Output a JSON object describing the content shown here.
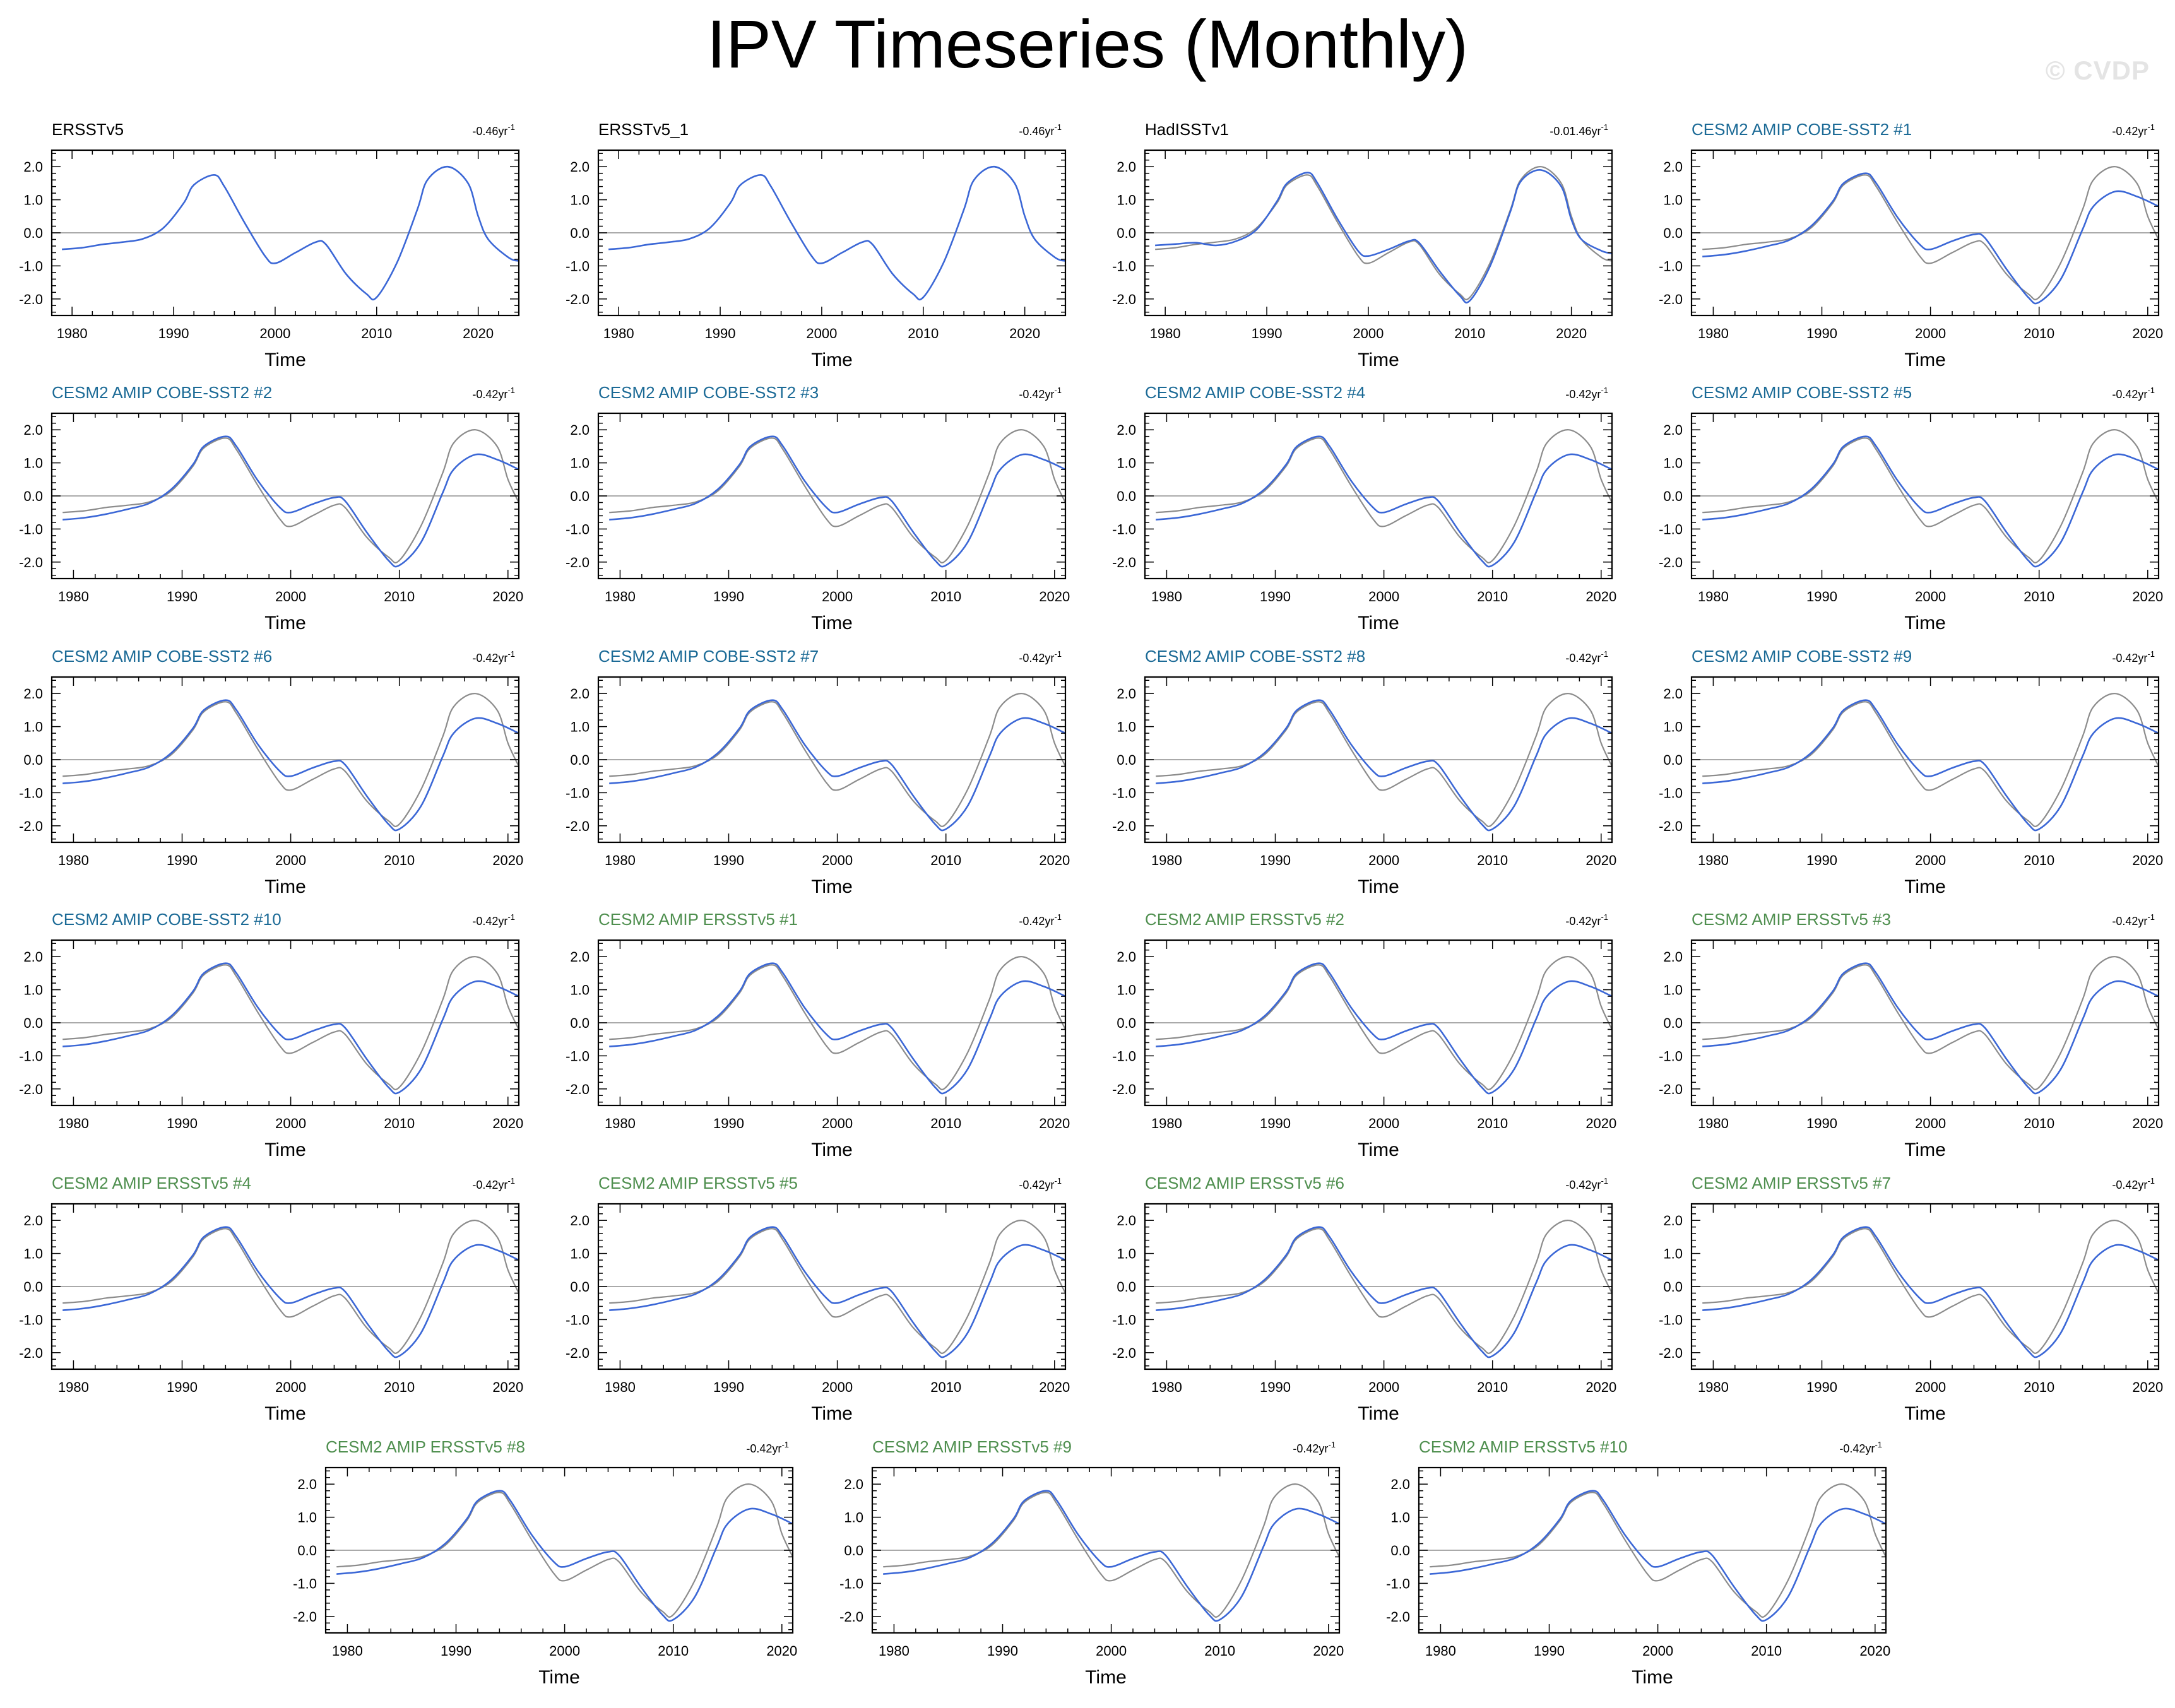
{
  "title": "IPV Timeseries (Monthly)",
  "watermark": "© CVDP",
  "colors": {
    "observation": "#000000",
    "amip_cobe": "#1b6a96",
    "amip_ersst": "#4f8f4f",
    "model_line": "#3b67d6",
    "obs_line": "#8c8c8c",
    "zero_line": "#aaaaaa"
  },
  "chart_data": {
    "type": "line",
    "x_unit": "year",
    "xlabel": "Time",
    "xticks": [
      1980,
      1990,
      2000,
      2010,
      2020
    ],
    "yticks": [
      -2.0,
      -1.0,
      0.0,
      1.0,
      2.0
    ],
    "ylim": [
      -2.5,
      2.5
    ],
    "reference_obs": {
      "x": [
        1979,
        1981,
        1983,
        1985,
        1987,
        1989,
        1991,
        1992,
        1994,
        1995,
        1997,
        1999,
        2000,
        2002,
        2004,
        2005,
        2007,
        2009,
        2010,
        2012,
        2014,
        2015,
        2017,
        2019,
        2020,
        2021,
        2023,
        2024
      ],
      "y": [
        -0.5,
        -0.45,
        -0.35,
        -0.28,
        -0.18,
        0.15,
        0.9,
        1.45,
        1.75,
        1.4,
        0.3,
        -0.7,
        -0.92,
        -0.6,
        -0.28,
        -0.35,
        -1.25,
        -1.85,
        -1.95,
        -0.9,
        0.7,
        1.6,
        2.0,
        1.5,
        0.5,
        -0.2,
        -0.75,
        -0.85
      ]
    },
    "model": {
      "x": [
        1979,
        1981,
        1983,
        1985,
        1987,
        1989,
        1991,
        1992,
        1994,
        1995,
        1997,
        1999,
        2000,
        2002,
        2004,
        2005,
        2007,
        2009,
        2010,
        2012,
        2014,
        2015,
        2017,
        2019,
        2021
      ],
      "y": [
        -0.72,
        -0.66,
        -0.55,
        -0.4,
        -0.22,
        0.2,
        0.95,
        1.5,
        1.8,
        1.5,
        0.45,
        -0.35,
        -0.5,
        -0.25,
        -0.05,
        -0.15,
        -1.1,
        -1.95,
        -2.1,
        -1.4,
        0.1,
        0.8,
        1.25,
        1.1,
        0.8
      ]
    },
    "panels": [
      {
        "title": "ERSSTv5",
        "trend": "-0.46yr",
        "group": "obs",
        "x_max": 2024,
        "y": [
          -0.5,
          -0.45,
          -0.35,
          -0.28,
          -0.18,
          0.15,
          0.9,
          1.45,
          1.75,
          1.4,
          0.3,
          -0.7,
          -0.92,
          -0.6,
          -0.28,
          -0.35,
          -1.25,
          -1.85,
          -1.95,
          -0.9,
          0.7,
          1.6,
          2.0,
          1.5,
          0.5,
          -0.2,
          -0.75,
          -0.85
        ]
      },
      {
        "title": "ERSSTv5_1",
        "trend": "-0.46yr",
        "group": "obs",
        "x_max": 2024,
        "y": [
          -0.5,
          -0.45,
          -0.35,
          -0.28,
          -0.18,
          0.15,
          0.9,
          1.45,
          1.75,
          1.4,
          0.3,
          -0.7,
          -0.92,
          -0.6,
          -0.28,
          -0.35,
          -1.25,
          -1.85,
          -1.95,
          -0.9,
          0.7,
          1.6,
          2.0,
          1.5,
          0.5,
          -0.2,
          -0.75,
          -0.85
        ]
      },
      {
        "title": "HadISSTv1",
        "trend": "-0.01.46yr",
        "group": "obs",
        "x_max": 2024,
        "y": [
          -0.38,
          -0.34,
          -0.3,
          -0.38,
          -0.25,
          0.1,
          0.95,
          1.5,
          1.82,
          1.5,
          0.4,
          -0.55,
          -0.7,
          -0.5,
          -0.25,
          -0.3,
          -1.15,
          -1.9,
          -2.05,
          -1.0,
          0.65,
          1.55,
          1.9,
          1.4,
          0.4,
          -0.2,
          -0.55,
          -0.62
        ]
      },
      {
        "title": "CESM2 AMIP COBE-SST2 #1",
        "trend": "-0.42yr",
        "group": "cobe",
        "x_max": 2021
      },
      {
        "title": "CESM2 AMIP COBE-SST2 #2",
        "trend": "-0.42yr",
        "group": "cobe",
        "x_max": 2021
      },
      {
        "title": "CESM2 AMIP COBE-SST2 #3",
        "trend": "-0.42yr",
        "group": "cobe",
        "x_max": 2021
      },
      {
        "title": "CESM2 AMIP COBE-SST2 #4",
        "trend": "-0.42yr",
        "group": "cobe",
        "x_max": 2021
      },
      {
        "title": "CESM2 AMIP COBE-SST2 #5",
        "trend": "-0.42yr",
        "group": "cobe",
        "x_max": 2021
      },
      {
        "title": "CESM2 AMIP COBE-SST2 #6",
        "trend": "-0.42yr",
        "group": "cobe",
        "x_max": 2021
      },
      {
        "title": "CESM2 AMIP COBE-SST2 #7",
        "trend": "-0.42yr",
        "group": "cobe",
        "x_max": 2021
      },
      {
        "title": "CESM2 AMIP COBE-SST2 #8",
        "trend": "-0.42yr",
        "group": "cobe",
        "x_max": 2021
      },
      {
        "title": "CESM2 AMIP COBE-SST2 #9",
        "trend": "-0.42yr",
        "group": "cobe",
        "x_max": 2021
      },
      {
        "title": "CESM2 AMIP COBE-SST2 #10",
        "trend": "-0.42yr",
        "group": "cobe",
        "x_max": 2021
      },
      {
        "title": "CESM2 AMIP ERSSTv5 #1",
        "trend": "-0.42yr",
        "group": "ersst",
        "x_max": 2021
      },
      {
        "title": "CESM2 AMIP ERSSTv5 #2",
        "trend": "-0.42yr",
        "group": "ersst",
        "x_max": 2021
      },
      {
        "title": "CESM2 AMIP ERSSTv5 #3",
        "trend": "-0.42yr",
        "group": "ersst",
        "x_max": 2021
      },
      {
        "title": "CESM2 AMIP ERSSTv5 #4",
        "trend": "-0.42yr",
        "group": "ersst",
        "x_max": 2021
      },
      {
        "title": "CESM2 AMIP ERSSTv5 #5",
        "trend": "-0.42yr",
        "group": "ersst",
        "x_max": 2021
      },
      {
        "title": "CESM2 AMIP ERSSTv5 #6",
        "trend": "-0.42yr",
        "group": "ersst",
        "x_max": 2021
      },
      {
        "title": "CESM2 AMIP ERSSTv5 #7",
        "trend": "-0.42yr",
        "group": "ersst",
        "x_max": 2021
      },
      {
        "title": "CESM2 AMIP ERSSTv5 #8",
        "trend": "-0.42yr",
        "group": "ersst",
        "x_max": 2021
      },
      {
        "title": "CESM2 AMIP ERSSTv5 #9",
        "trend": "-0.42yr",
        "group": "ersst",
        "x_max": 2021
      },
      {
        "title": "CESM2 AMIP ERSSTv5 #10",
        "trend": "-0.42yr",
        "group": "ersst",
        "x_max": 2021
      }
    ]
  }
}
